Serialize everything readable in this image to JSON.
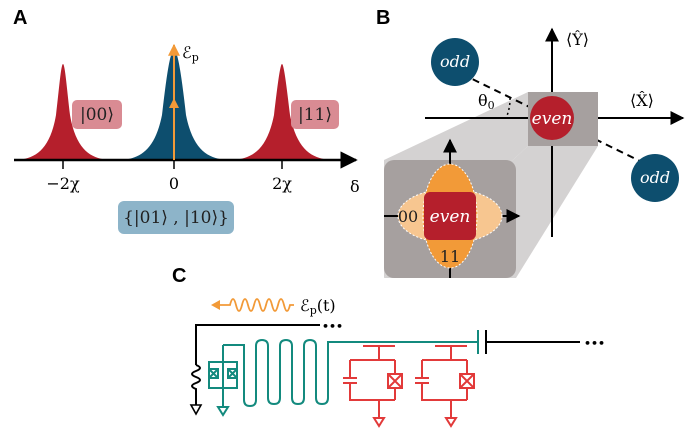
{
  "colors": {
    "red": "#b51f2c",
    "red_box": "#d98b93",
    "blue": "#0d4e6e",
    "blue_box": "#8db4c9",
    "orange": "#f29a38",
    "orange_light": "#f7c690",
    "gray_box": "#a6a09f",
    "green_circuit": "#138a7e",
    "red_circuit": "#e23a3a"
  },
  "panelA": {
    "letter": "A",
    "drive_label": "ℰ",
    "drive_sub": "p",
    "axis_label": "δ",
    "ticks": [
      "−2χ",
      "0",
      "2χ"
    ],
    "state_00": "|00⟩",
    "state_11": "|11⟩",
    "state_odd": "{|01⟩ , |10⟩}"
  },
  "panelB": {
    "letter": "B",
    "y_axis_label": "⟨Ŷ⟩",
    "x_axis_label": "⟨X̂⟩",
    "theta_label": "θ",
    "theta_sub": "0",
    "odd_top": "odd",
    "odd_bottom": "odd",
    "even_center": "even",
    "inset_even": "even",
    "inset_00": "00",
    "inset_11": "11"
  },
  "panelC": {
    "letter": "C",
    "drive_label": "ℰ",
    "drive_sub": "p",
    "drive_arg": "(t)",
    "ellipsis_top": "•••",
    "ellipsis_right": "•••"
  }
}
